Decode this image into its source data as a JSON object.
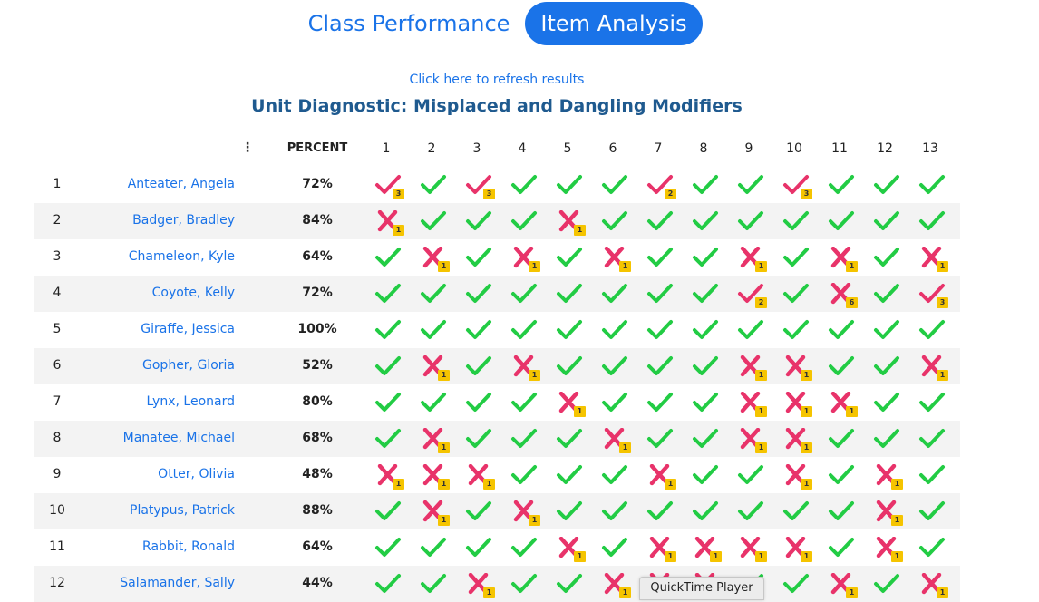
{
  "tabs": {
    "class_performance": "Class Performance",
    "item_analysis": "Item Analysis"
  },
  "refresh_link": "Click here to refresh results",
  "title": "Unit Diagnostic: Misplaced and Dangling Modifiers",
  "table": {
    "menu_icon": "vertical-dots-icon",
    "percent_header": "PERCENT",
    "questions": [
      "1",
      "2",
      "3",
      "4",
      "5",
      "6",
      "7",
      "8",
      "9",
      "10",
      "11",
      "12",
      "13"
    ],
    "colors": {
      "correct": "#22cc44",
      "incorrect": "#e8336a",
      "badge": "#f5c400",
      "name_link": "#1a73e8"
    },
    "rows": [
      {
        "num": "1",
        "name": "Anteater, Angela",
        "percent": "72%",
        "results": [
          [
            "P",
            "3"
          ],
          [
            "C"
          ],
          [
            "P",
            "3"
          ],
          [
            "C"
          ],
          [
            "C"
          ],
          [
            "C"
          ],
          [
            "P",
            "2"
          ],
          [
            "C"
          ],
          [
            "C"
          ],
          [
            "P",
            "3"
          ],
          [
            "C"
          ],
          [
            "C"
          ],
          [
            "C"
          ]
        ]
      },
      {
        "num": "2",
        "name": "Badger, Bradley",
        "percent": "84%",
        "results": [
          [
            "X",
            "1"
          ],
          [
            "C"
          ],
          [
            "C"
          ],
          [
            "C"
          ],
          [
            "X",
            "1"
          ],
          [
            "C"
          ],
          [
            "C"
          ],
          [
            "C"
          ],
          [
            "C"
          ],
          [
            "C"
          ],
          [
            "C"
          ],
          [
            "C"
          ],
          [
            "C"
          ]
        ]
      },
      {
        "num": "3",
        "name": "Chameleon, Kyle",
        "percent": "64%",
        "results": [
          [
            "C"
          ],
          [
            "X",
            "1"
          ],
          [
            "C"
          ],
          [
            "X",
            "1"
          ],
          [
            "C"
          ],
          [
            "X",
            "1"
          ],
          [
            "C"
          ],
          [
            "C"
          ],
          [
            "X",
            "1"
          ],
          [
            "C"
          ],
          [
            "X",
            "1"
          ],
          [
            "C"
          ],
          [
            "X",
            "1"
          ]
        ]
      },
      {
        "num": "4",
        "name": "Coyote, Kelly",
        "percent": "72%",
        "results": [
          [
            "C"
          ],
          [
            "C"
          ],
          [
            "C"
          ],
          [
            "C"
          ],
          [
            "C"
          ],
          [
            "C"
          ],
          [
            "C"
          ],
          [
            "C"
          ],
          [
            "P",
            "2"
          ],
          [
            "C"
          ],
          [
            "X",
            "6"
          ],
          [
            "C"
          ],
          [
            "P",
            "3"
          ]
        ]
      },
      {
        "num": "5",
        "name": "Giraffe, Jessica",
        "percent": "100%",
        "results": [
          [
            "C"
          ],
          [
            "C"
          ],
          [
            "C"
          ],
          [
            "C"
          ],
          [
            "C"
          ],
          [
            "C"
          ],
          [
            "C"
          ],
          [
            "C"
          ],
          [
            "C"
          ],
          [
            "C"
          ],
          [
            "C"
          ],
          [
            "C"
          ],
          [
            "C"
          ]
        ]
      },
      {
        "num": "6",
        "name": "Gopher, Gloria",
        "percent": "52%",
        "results": [
          [
            "C"
          ],
          [
            "X",
            "1"
          ],
          [
            "C"
          ],
          [
            "X",
            "1"
          ],
          [
            "C"
          ],
          [
            "C"
          ],
          [
            "C"
          ],
          [
            "C"
          ],
          [
            "X",
            "1"
          ],
          [
            "X",
            "1"
          ],
          [
            "C"
          ],
          [
            "C"
          ],
          [
            "X",
            "1"
          ]
        ]
      },
      {
        "num": "7",
        "name": "Lynx, Leonard",
        "percent": "80%",
        "results": [
          [
            "C"
          ],
          [
            "C"
          ],
          [
            "C"
          ],
          [
            "C"
          ],
          [
            "X",
            "1"
          ],
          [
            "C"
          ],
          [
            "C"
          ],
          [
            "C"
          ],
          [
            "X",
            "1"
          ],
          [
            "X",
            "1"
          ],
          [
            "X",
            "1"
          ],
          [
            "C"
          ],
          [
            "C"
          ]
        ]
      },
      {
        "num": "8",
        "name": "Manatee, Michael",
        "percent": "68%",
        "results": [
          [
            "C"
          ],
          [
            "X",
            "1"
          ],
          [
            "C"
          ],
          [
            "C"
          ],
          [
            "C"
          ],
          [
            "X",
            "1"
          ],
          [
            "C"
          ],
          [
            "C"
          ],
          [
            "X",
            "1"
          ],
          [
            "X",
            "1"
          ],
          [
            "C"
          ],
          [
            "C"
          ],
          [
            "C"
          ]
        ]
      },
      {
        "num": "9",
        "name": "Otter, Olivia",
        "percent": "48%",
        "results": [
          [
            "X",
            "1"
          ],
          [
            "X",
            "1"
          ],
          [
            "X",
            "1"
          ],
          [
            "C"
          ],
          [
            "C"
          ],
          [
            "C"
          ],
          [
            "X",
            "1"
          ],
          [
            "C"
          ],
          [
            "C"
          ],
          [
            "X",
            "1"
          ],
          [
            "C"
          ],
          [
            "X",
            "1"
          ],
          [
            "C"
          ]
        ]
      },
      {
        "num": "10",
        "name": "Platypus, Patrick",
        "percent": "88%",
        "results": [
          [
            "C"
          ],
          [
            "X",
            "1"
          ],
          [
            "C"
          ],
          [
            "X",
            "1"
          ],
          [
            "C"
          ],
          [
            "C"
          ],
          [
            "C"
          ],
          [
            "C"
          ],
          [
            "C"
          ],
          [
            "C"
          ],
          [
            "C"
          ],
          [
            "X",
            "1"
          ],
          [
            "C"
          ]
        ]
      },
      {
        "num": "11",
        "name": "Rabbit, Ronald",
        "percent": "64%",
        "results": [
          [
            "C"
          ],
          [
            "C"
          ],
          [
            "C"
          ],
          [
            "C"
          ],
          [
            "X",
            "1"
          ],
          [
            "C"
          ],
          [
            "X",
            "1"
          ],
          [
            "X",
            "1"
          ],
          [
            "X",
            "1"
          ],
          [
            "X",
            "1"
          ],
          [
            "C"
          ],
          [
            "X",
            "1"
          ],
          [
            "C"
          ]
        ]
      },
      {
        "num": "12",
        "name": "Salamander, Sally",
        "percent": "44%",
        "results": [
          [
            "C"
          ],
          [
            "C"
          ],
          [
            "X",
            "1"
          ],
          [
            "C"
          ],
          [
            "C"
          ],
          [
            "X",
            "1"
          ],
          [
            "X",
            "1"
          ],
          [
            "X",
            "1"
          ],
          [
            "C"
          ],
          [
            "C"
          ],
          [
            "X",
            "1"
          ],
          [
            "C"
          ],
          [
            "X",
            "1"
          ]
        ]
      }
    ]
  },
  "tooltip": "QuickTime Player"
}
